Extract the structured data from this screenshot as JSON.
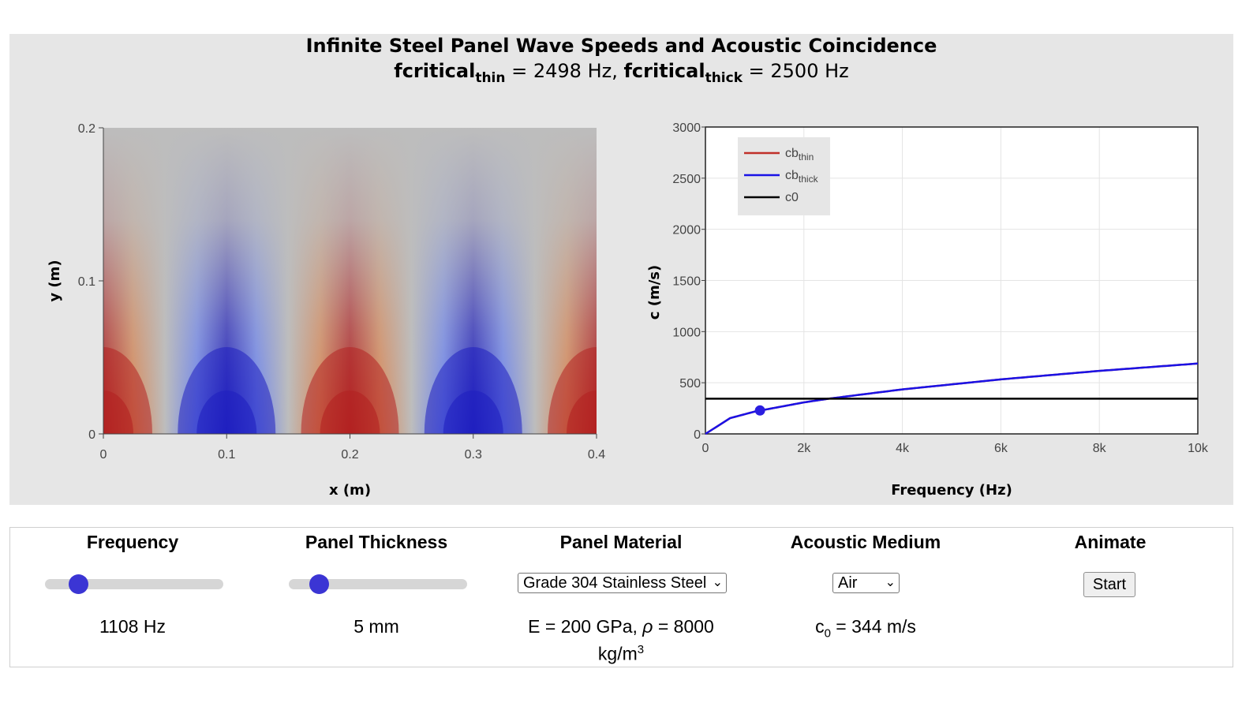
{
  "plot": {
    "title": "Infinite Steel Panel Wave Speeds and Acoustic Coincidence",
    "subtitle": {
      "thin_label": "fcritical",
      "thin_sub": "thin",
      "thin_value": " = 2498 Hz, ",
      "thick_label": "fcritical",
      "thick_sub": "thick",
      "thick_value": " = 2500 Hz"
    }
  },
  "chart_data": [
    {
      "type": "heatmap",
      "xlabel": "x (m)",
      "ylabel": "y (m)",
      "xlim": [
        0,
        0.4
      ],
      "ylim": [
        0,
        0.2
      ],
      "x_ticks": [
        "0",
        "0.1",
        "0.2",
        "0.3",
        "0.4"
      ],
      "y_ticks": [
        "0",
        "0.1",
        "0.2"
      ],
      "field_peaks": [
        {
          "x": 0.0,
          "sign": "positive"
        },
        {
          "x": 0.1,
          "sign": "negative"
        },
        {
          "x": 0.2,
          "sign": "positive"
        },
        {
          "x": 0.3,
          "sign": "negative"
        },
        {
          "x": 0.4,
          "sign": "positive"
        }
      ],
      "colors": {
        "positive": "#b22222",
        "negative": "#1f1fbf",
        "neutral": "#bdbdbd"
      }
    },
    {
      "type": "line",
      "xlabel": "Frequency (Hz)",
      "ylabel": "c (m/s)",
      "xlim": [
        0,
        10000
      ],
      "ylim": [
        0,
        3000
      ],
      "x_ticks": [
        "0",
        "2k",
        "4k",
        "6k",
        "8k",
        "10k"
      ],
      "y_ticks": [
        "0",
        "500",
        "1000",
        "1500",
        "2000",
        "2500",
        "3000"
      ],
      "grid": true,
      "legend_position": "top-left",
      "series": [
        {
          "name": "cb",
          "sub": "thin",
          "color": "#c0302a",
          "x": [
            0,
            500,
            1000,
            2000,
            2500,
            4000,
            6000,
            8000,
            10000
          ],
          "y": [
            0,
            154,
            218,
            308,
            344,
            435,
            533,
            616,
            688
          ]
        },
        {
          "name": "cb",
          "sub": "thick",
          "color": "#1a12e6",
          "x": [
            0,
            500,
            1000,
            2000,
            2500,
            4000,
            6000,
            8000,
            10000
          ],
          "y": [
            0,
            154,
            218,
            308,
            344,
            435,
            533,
            616,
            688
          ]
        },
        {
          "name": "c0",
          "sub": "",
          "color": "#000000",
          "x": [
            0,
            10000
          ],
          "y": [
            344,
            344
          ]
        }
      ],
      "marker": {
        "x": 1108,
        "y": 229,
        "color": "#2a1ee0"
      }
    }
  ],
  "controls": {
    "frequency": {
      "label": "Frequency",
      "value": "1108 Hz",
      "slider_fraction": 0.15
    },
    "thickness": {
      "label": "Panel Thickness",
      "value": "5 mm",
      "slider_fraction": 0.13
    },
    "material": {
      "label": "Panel Material",
      "selected": "Grade 304 Stainless Steel",
      "value_line1": "E = 200 GPa, ",
      "rho_symbol": "ρ",
      "value_line1b": " = 8000",
      "value_line2": "kg/m",
      "value_line2_sup": "3"
    },
    "medium": {
      "label": "Acoustic Medium",
      "selected": "Air",
      "value_prefix": "c",
      "value_sub": "0",
      "value_suffix": " = 344 m/s"
    },
    "animate": {
      "label": "Animate",
      "button_label": "Start"
    }
  },
  "accent_color": "#3b35d4"
}
